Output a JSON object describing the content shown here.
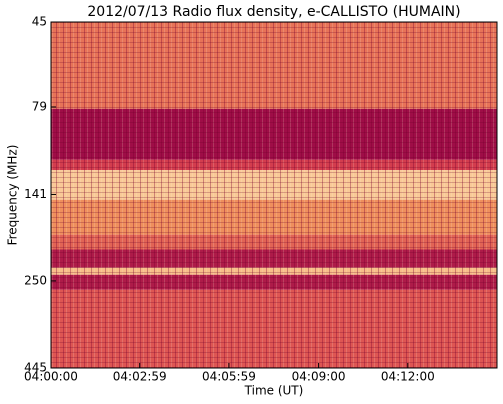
{
  "chart_data": {
    "type": "heatmap",
    "title": "2012/07/13  Radio flux density, e-CALLISTO (HUMAIN)",
    "xlabel": "Time (UT)",
    "ylabel": "Frequency (MHz)",
    "xlim": [
      0,
      900
    ],
    "xticks": [
      {
        "value": 0,
        "label": "04:00:00"
      },
      {
        "value": 179,
        "label": "04:02:59"
      },
      {
        "value": 359,
        "label": "04:05:59"
      },
      {
        "value": 540,
        "label": "04:09:00"
      },
      {
        "value": 720,
        "label": "04:12:00"
      }
    ],
    "ylim": [
      45,
      445
    ],
    "yscale": "log",
    "y_inverted": true,
    "yticks": [
      45,
      79,
      141,
      250,
      445
    ],
    "y_edges": [
      45,
      80,
      112,
      120,
      146,
      184,
      203,
      229,
      240,
      265,
      445
    ],
    "values": [
      0.5,
      0.02,
      0.3,
      0.85,
      0.6,
      0.45,
      0.1,
      0.8,
      0.1,
      0.4
    ],
    "colorscale": [
      "#9b0a47",
      "#d9434f",
      "#f4a261",
      "#fde9c4"
    ]
  }
}
